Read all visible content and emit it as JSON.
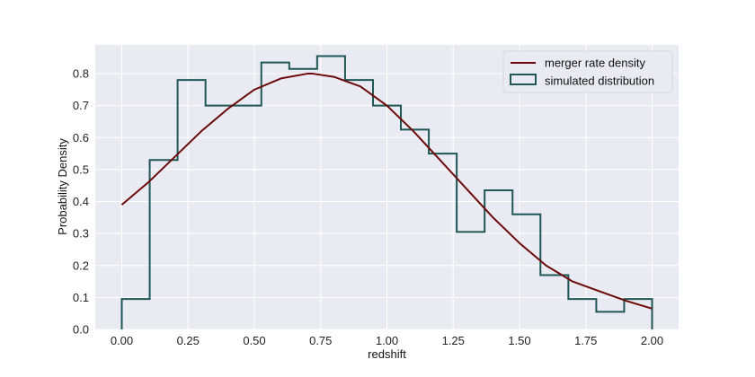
{
  "chart_data": {
    "type": "line",
    "xlabel": "redshift",
    "ylabel": "Probability Density",
    "xlim": [
      -0.1,
      2.1
    ],
    "ylim": [
      0,
      0.89
    ],
    "xticks": [
      "0.00",
      "0.25",
      "0.50",
      "0.75",
      "1.00",
      "1.25",
      "1.50",
      "1.75",
      "2.00"
    ],
    "yticks": [
      "0.0",
      "0.1",
      "0.2",
      "0.3",
      "0.4",
      "0.5",
      "0.6",
      "0.7",
      "0.8"
    ],
    "grid": true,
    "legend_position": "top-right",
    "series": [
      {
        "name": "merger rate density",
        "kind": "line",
        "color": "#6b0a0a",
        "x": [
          0.0,
          0.1,
          0.2,
          0.3,
          0.4,
          0.5,
          0.6,
          0.7,
          0.72,
          0.8,
          0.9,
          1.0,
          1.1,
          1.2,
          1.3,
          1.4,
          1.5,
          1.6,
          1.7,
          1.8,
          1.9,
          2.0
        ],
        "y": [
          0.39,
          0.46,
          0.54,
          0.62,
          0.69,
          0.75,
          0.785,
          0.8,
          0.8,
          0.79,
          0.76,
          0.7,
          0.62,
          0.53,
          0.44,
          0.35,
          0.27,
          0.2,
          0.15,
          0.12,
          0.09,
          0.065
        ]
      },
      {
        "name": "simulated distribution",
        "kind": "step-histogram",
        "color": "#1f5656",
        "bin_edges": [
          0.0,
          0.1053,
          0.2105,
          0.3158,
          0.4211,
          0.5263,
          0.6316,
          0.7368,
          0.8421,
          0.9474,
          1.0526,
          1.1579,
          1.2632,
          1.3684,
          1.4737,
          1.5789,
          1.6842,
          1.7895,
          1.8947,
          2.0
        ],
        "values": [
          0.095,
          0.53,
          0.78,
          0.7,
          0.7,
          0.835,
          0.815,
          0.855,
          0.78,
          0.7,
          0.625,
          0.55,
          0.305,
          0.435,
          0.36,
          0.17,
          0.095,
          0.055,
          0.095
        ]
      }
    ],
    "colors": {
      "plot_background": "#eaeaf2",
      "grid": "#ffffff"
    }
  }
}
